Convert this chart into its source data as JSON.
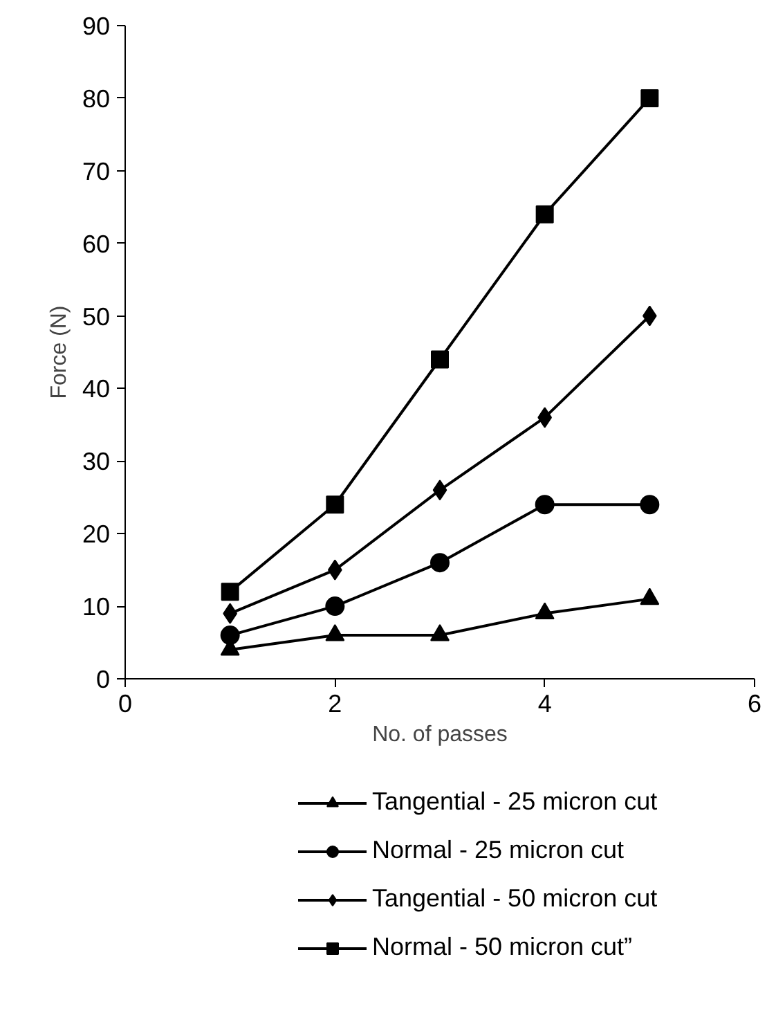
{
  "chart_data": {
    "type": "line",
    "xlabel": "No. of passes",
    "ylabel": "Force (N)",
    "x": [
      1,
      2,
      3,
      4,
      5
    ],
    "xlim": [
      0,
      6
    ],
    "xticks": [
      0,
      2,
      4,
      6
    ],
    "ylim": [
      0,
      90
    ],
    "yticks": [
      0,
      10,
      20,
      30,
      40,
      50,
      60,
      70,
      80,
      90
    ],
    "grid": false,
    "legend": "bottom",
    "line_style": "solid",
    "series": [
      {
        "name": "Tangential - 25 micron cut",
        "color": "#000000",
        "marker": "triangle",
        "values": [
          4,
          6,
          6,
          9,
          11
        ]
      },
      {
        "name": "Normal - 25 micron cut",
        "color": "#000000",
        "marker": "circle",
        "values": [
          6,
          10,
          16,
          24,
          24
        ]
      },
      {
        "name": "Tangential - 50 micron cut",
        "color": "#000000",
        "marker": "diamond",
        "values": [
          9,
          15,
          26,
          36,
          50
        ]
      },
      {
        "name": "Normal - 50 micron cut”",
        "color": "#000000",
        "marker": "square",
        "values": [
          12,
          24,
          44,
          64,
          80
        ]
      }
    ]
  }
}
